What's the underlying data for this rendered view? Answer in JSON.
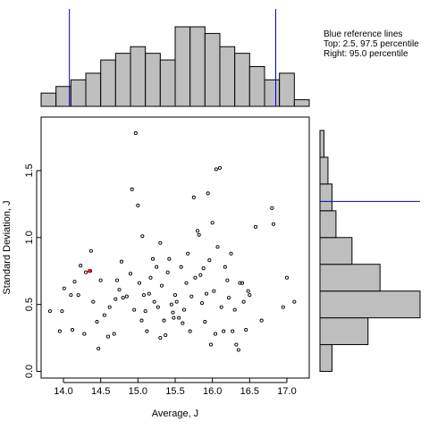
{
  "chart_data": {
    "type": "scatter",
    "xlabel": "Average, J",
    "ylabel": "Standard Deviation, J",
    "xlim": [
      13.7,
      17.3
    ],
    "ylim": [
      -0.05,
      1.9
    ],
    "x_ticks": [
      "14.0",
      "14.5",
      "15.0",
      "15.5",
      "16.0",
      "16.5",
      "17.0"
    ],
    "y_ticks": [
      "0.0",
      "0.5",
      "1.0",
      "1.5"
    ],
    "annotation": [
      "Blue reference lines",
      "Top: 2.5, 97.5 percentile",
      "Right: 95.0 percentile"
    ],
    "reference_lines": {
      "top_x": [
        14.08,
        16.85
      ],
      "right_y": 1.27
    },
    "colors": {
      "points": "#000000",
      "highlight": "#ff0000",
      "reference": "#0000cc",
      "bars": "#bebebe"
    },
    "points": [
      [
        13.82,
        0.45
      ],
      [
        13.98,
        0.45
      ],
      [
        14.01,
        0.62
      ],
      [
        14.1,
        0.57
      ],
      [
        14.12,
        0.31
      ],
      [
        14.15,
        0.67
      ],
      [
        14.2,
        0.57
      ],
      [
        14.23,
        0.79
      ],
      [
        14.28,
        0.28
      ],
      [
        14.3,
        0.74
      ],
      [
        14.36,
        0.75
      ],
      [
        14.37,
        0.9
      ],
      [
        14.4,
        0.52
      ],
      [
        14.45,
        0.37
      ],
      [
        14.47,
        0.17
      ],
      [
        14.5,
        0.68
      ],
      [
        14.55,
        0.42
      ],
      [
        14.62,
        0.48
      ],
      [
        14.68,
        0.28
      ],
      [
        14.7,
        0.54
      ],
      [
        14.72,
        0.68
      ],
      [
        14.75,
        0.61
      ],
      [
        14.78,
        0.82
      ],
      [
        14.8,
        0.55
      ],
      [
        14.85,
        0.56
      ],
      [
        14.9,
        0.73
      ],
      [
        14.92,
        1.36
      ],
      [
        14.95,
        0.46
      ],
      [
        14.97,
        1.78
      ],
      [
        15.0,
        1.24
      ],
      [
        15.02,
        0.66
      ],
      [
        15.05,
        0.38
      ],
      [
        15.06,
        1.01
      ],
      [
        15.08,
        0.57
      ],
      [
        15.1,
        0.45
      ],
      [
        15.12,
        0.3
      ],
      [
        15.15,
        0.58
      ],
      [
        15.17,
        0.7
      ],
      [
        15.2,
        0.84
      ],
      [
        15.22,
        0.52
      ],
      [
        15.25,
        0.78
      ],
      [
        15.27,
        0.48
      ],
      [
        15.3,
        0.96
      ],
      [
        15.32,
        0.64
      ],
      [
        15.35,
        0.38
      ],
      [
        15.37,
        0.27
      ],
      [
        15.4,
        0.74
      ],
      [
        15.42,
        0.84
      ],
      [
        15.45,
        0.5
      ],
      [
        15.47,
        0.44
      ],
      [
        15.5,
        0.57
      ],
      [
        15.52,
        0.52
      ],
      [
        15.55,
        0.4
      ],
      [
        15.58,
        0.78
      ],
      [
        15.6,
        0.36
      ],
      [
        15.62,
        0.46
      ],
      [
        15.65,
        0.66
      ],
      [
        15.67,
        0.88
      ],
      [
        15.7,
        0.3
      ],
      [
        15.72,
        0.56
      ],
      [
        15.75,
        1.3
      ],
      [
        15.77,
        0.7
      ],
      [
        15.8,
        1.05
      ],
      [
        15.82,
        1.02
      ],
      [
        15.84,
        0.72
      ],
      [
        15.86,
        0.51
      ],
      [
        15.88,
        0.77
      ],
      [
        15.9,
        0.37
      ],
      [
        15.92,
        0.58
      ],
      [
        15.94,
        1.33
      ],
      [
        15.96,
        0.83
      ],
      [
        15.98,
        0.2
      ],
      [
        16.0,
        1.11
      ],
      [
        16.02,
        0.6
      ],
      [
        16.04,
        0.28
      ],
      [
        16.05,
        1.51
      ],
      [
        16.07,
        0.93
      ],
      [
        16.1,
        1.52
      ],
      [
        16.12,
        0.48
      ],
      [
        16.15,
        0.3
      ],
      [
        16.17,
        0.78
      ],
      [
        16.2,
        0.68
      ],
      [
        16.22,
        0.55
      ],
      [
        16.25,
        0.88
      ],
      [
        16.27,
        0.3
      ],
      [
        16.3,
        0.46
      ],
      [
        16.32,
        0.2
      ],
      [
        16.35,
        0.16
      ],
      [
        16.37,
        0.66
      ],
      [
        16.4,
        0.66
      ],
      [
        16.42,
        0.52
      ],
      [
        16.45,
        0.31
      ],
      [
        16.48,
        0.6
      ],
      [
        16.5,
        0.57
      ],
      [
        16.58,
        1.08
      ],
      [
        16.66,
        0.38
      ],
      [
        16.8,
        1.22
      ],
      [
        16.82,
        1.1
      ],
      [
        16.95,
        0.48
      ],
      [
        17.0,
        0.7
      ],
      [
        17.1,
        0.52
      ],
      [
        13.95,
        0.3
      ],
      [
        14.6,
        0.26
      ],
      [
        15.3,
        0.25
      ],
      [
        15.48,
        0.4
      ]
    ],
    "highlight_points": [
      [
        14.35,
        0.75
      ]
    ],
    "top_histogram": {
      "bin_edges": [
        13.7,
        13.9,
        14.1,
        14.3,
        14.5,
        14.7,
        14.9,
        15.1,
        15.3,
        15.5,
        15.7,
        15.9,
        16.1,
        16.3,
        16.5,
        16.7,
        16.9,
        17.1,
        17.3
      ],
      "counts": [
        2,
        3,
        4,
        5,
        7,
        8,
        9,
        8,
        7,
        12,
        12,
        11,
        9,
        8,
        6,
        4,
        5,
        1
      ]
    },
    "right_histogram": {
      "bin_edges": [
        0.0,
        0.2,
        0.4,
        0.6,
        0.8,
        1.0,
        1.2,
        1.4,
        1.6,
        1.8
      ],
      "counts": [
        3,
        12,
        25,
        15,
        8,
        4,
        3,
        2,
        1
      ]
    }
  }
}
